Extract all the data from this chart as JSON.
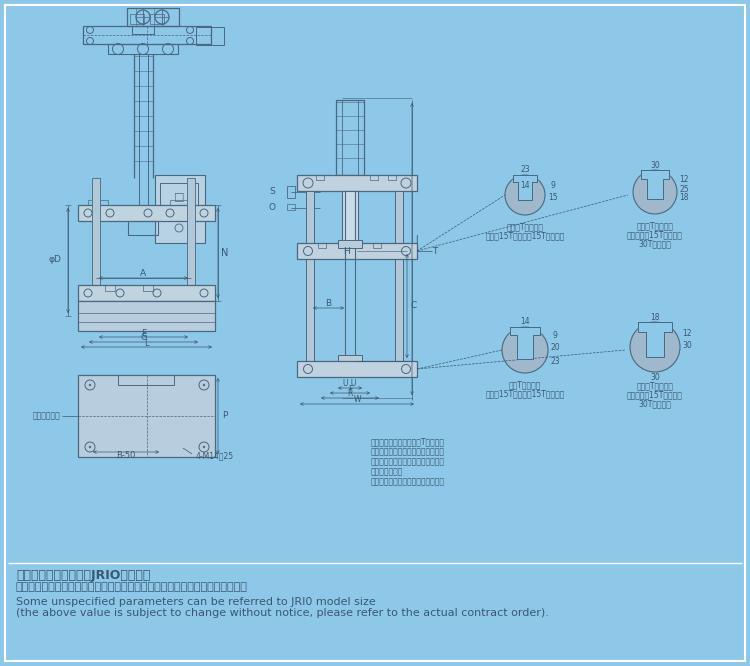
{
  "bg_color": "#8ec8e8",
  "line_color": "#4a6880",
  "text_color": "#3a5870",
  "footer_lines": [
    "部分未注明参数可参照JRIO型号尺寸",
    "（以上数値如因产品改进而变更恕不另行通知，请参照实际合同订单附图为准）",
    "Some unspecified parameters can be referred to JRI0 model size",
    "(the above value is subject to change without notice, please refer to the actual contract order)."
  ],
  "note_lines": [
    "注：上模固定方式可选择T型槽固定",
    "或者在移动板上面锥孔使用牙孔固定",
    "（牙孔固定时需要结合用户模具尺寸",
    "孔位来开孔）。",
    "具体情况视实际装配置需要时而定；"
  ],
  "slot_labels_top_small": [
    "移动板T型槽尺寸",
    "（适用15T以下（含15T）机型）"
  ],
  "slot_labels_top_large": [
    "移动板T型槽尺寸",
    "（适用大于15T小于等于",
    "30T的机型）"
  ],
  "slot_labels_bot_small": [
    "底板T型槽尺寸",
    "（适用15T以下（含15T）机型）"
  ],
  "slot_labels_bot_large": [
    "移动板T型槽尺寸",
    "（适用大于15T小于等于",
    "30T的机型）"
  ]
}
